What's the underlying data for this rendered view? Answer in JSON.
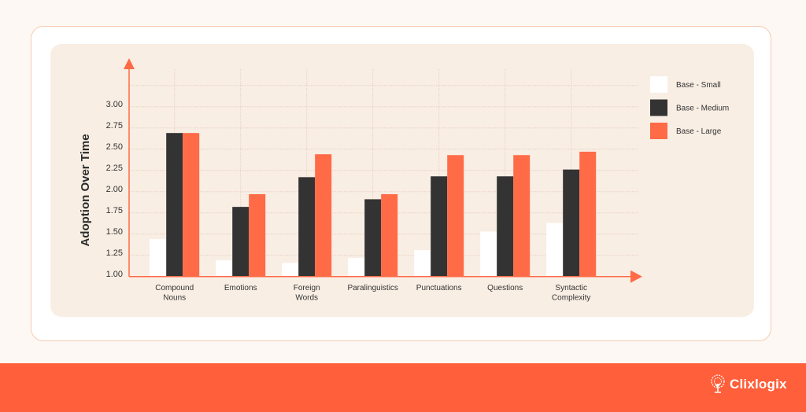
{
  "chart_data": {
    "type": "bar",
    "title": "",
    "xlabel": "",
    "ylabel": "Adoption Over Time",
    "ylim": [
      1.0,
      3.25
    ],
    "yticks": [
      "1.00",
      "1.25",
      "1.50",
      "1.75",
      "2.00",
      "2.25",
      "2.50",
      "2.75",
      "3.00"
    ],
    "grid": true,
    "legend_position": "right",
    "categories": [
      [
        "Compound",
        "Nouns"
      ],
      [
        "Emotions"
      ],
      [
        "Foreign",
        "Words"
      ],
      [
        "Paralinguistics"
      ],
      [
        "Punctuations"
      ],
      [
        "Questions"
      ],
      [
        "Syntactic",
        "Complexity"
      ]
    ],
    "series": [
      {
        "name": "Base - Small",
        "color": "#ffffff",
        "values": [
          1.44,
          1.19,
          1.16,
          1.22,
          1.31,
          1.53,
          1.63
        ]
      },
      {
        "name": "Base - Medium",
        "color": "#333333",
        "values": [
          2.69,
          1.82,
          2.17,
          1.91,
          2.18,
          2.18,
          2.26
        ]
      },
      {
        "name": "Base - Large",
        "color": "#ff6b47",
        "values": [
          2.69,
          1.97,
          2.44,
          1.97,
          2.43,
          2.43,
          2.47
        ]
      }
    ],
    "axis_color": "#ff6b47"
  },
  "brand": {
    "name": "Clixlogix",
    "icon": "tree-icon",
    "color": "#ff5f3a"
  }
}
